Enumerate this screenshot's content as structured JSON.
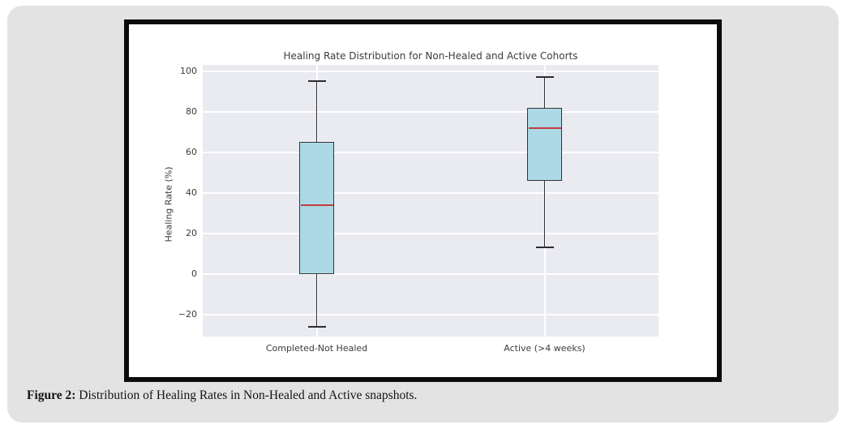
{
  "page": {
    "background_color": "#ffffff",
    "card_color": "#e3e3e3",
    "frame_border_color": "#0b0b0b"
  },
  "figure_caption": {
    "label": "Figure 2:",
    "text": " Distribution of Healing Rates in Non-Healed and Active snapshots."
  },
  "chart_data": {
    "type": "boxplot",
    "title": "Healing Rate Distribution for Non-Healed and Active Cohorts",
    "xlabel": "",
    "ylabel": "Healing Rate (%)",
    "categories": [
      "Completed-Not Healed",
      "Active (>4 weeks)"
    ],
    "series": [
      {
        "name": "Completed-Not Healed",
        "whisker_low": -26,
        "q1": 0,
        "median": 34,
        "q3": 65,
        "whisker_high": 95
      },
      {
        "name": "Active (>4 weeks)",
        "whisker_low": 13,
        "q1": 46,
        "median": 72,
        "q3": 82,
        "whisker_high": 97
      }
    ],
    "yticks": [
      100,
      80,
      60,
      40,
      20,
      0,
      -20
    ],
    "ylim": [
      -31,
      103
    ],
    "grid": true,
    "legend": "none",
    "plot_background": "#eaeaf1",
    "box_fill": "#add9e6",
    "box_edge": "#333539",
    "whisker_color": "#2e2e2e",
    "median_color": "#c43c3c",
    "text_color": "#3c3c3c"
  }
}
